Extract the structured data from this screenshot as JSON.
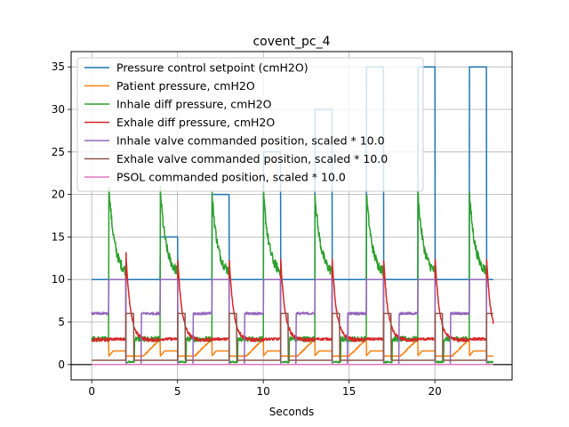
{
  "chart_data": {
    "type": "line",
    "title": "covent_pc_4",
    "xlabel": "Seconds",
    "ylabel": "",
    "xlim": [
      -1.2,
      24.5
    ],
    "ylim": [
      -1.8,
      36.8
    ],
    "xticks": [
      0,
      5,
      10,
      15,
      20
    ],
    "yticks": [
      0,
      5,
      10,
      15,
      20,
      25,
      30,
      35
    ],
    "grid": true,
    "legend_position": "top-left",
    "reference_line_y": 0,
    "breaths": {
      "count": 8,
      "period_s": 3.0,
      "inhale_start_s": [
        1.0,
        4.0,
        7.0,
        10.0,
        13.0,
        16.0,
        19.0,
        22.0
      ],
      "inhale_duration_s": 1.0,
      "end_time_s": 23.4
    },
    "series": [
      {
        "name": "Pressure control setpoint (cmH2O)",
        "color": "#1f77b4",
        "baseline": 10,
        "setpoints": [
          10,
          15,
          20,
          25,
          30,
          35,
          35,
          35
        ]
      },
      {
        "name": "Patient pressure, cmH2O",
        "color": "#ff7f0e",
        "baseline": 1.0,
        "plateau": 3.0
      },
      {
        "name": "Inhale diff pressure, cmH2O",
        "color": "#2ca02c",
        "peaks": [
          21,
          20.5,
          20.5,
          20.5,
          20.5,
          20.5,
          20.5,
          20.5
        ],
        "settle": 10.5,
        "expiration_level": 3.0,
        "noise": 0.6
      },
      {
        "name": "Exhale diff pressure, cmH2O",
        "color": "#d62728",
        "peak": 13,
        "expiration_level": 2.9
      },
      {
        "name": "Inhale valve commanded position, scaled * 10.0",
        "color": "#9467bd",
        "inhale_level": 10.0,
        "expiration_level": 6.0,
        "closed_level": 0.0
      },
      {
        "name": "Exhale valve commanded position, scaled * 10.0",
        "color": "#8c564b",
        "inhale_level": 0.5,
        "open_level": 6.0
      },
      {
        "name": "PSOL commanded position, scaled * 10.0",
        "color": "#e377c2",
        "level": 0.0
      }
    ]
  }
}
